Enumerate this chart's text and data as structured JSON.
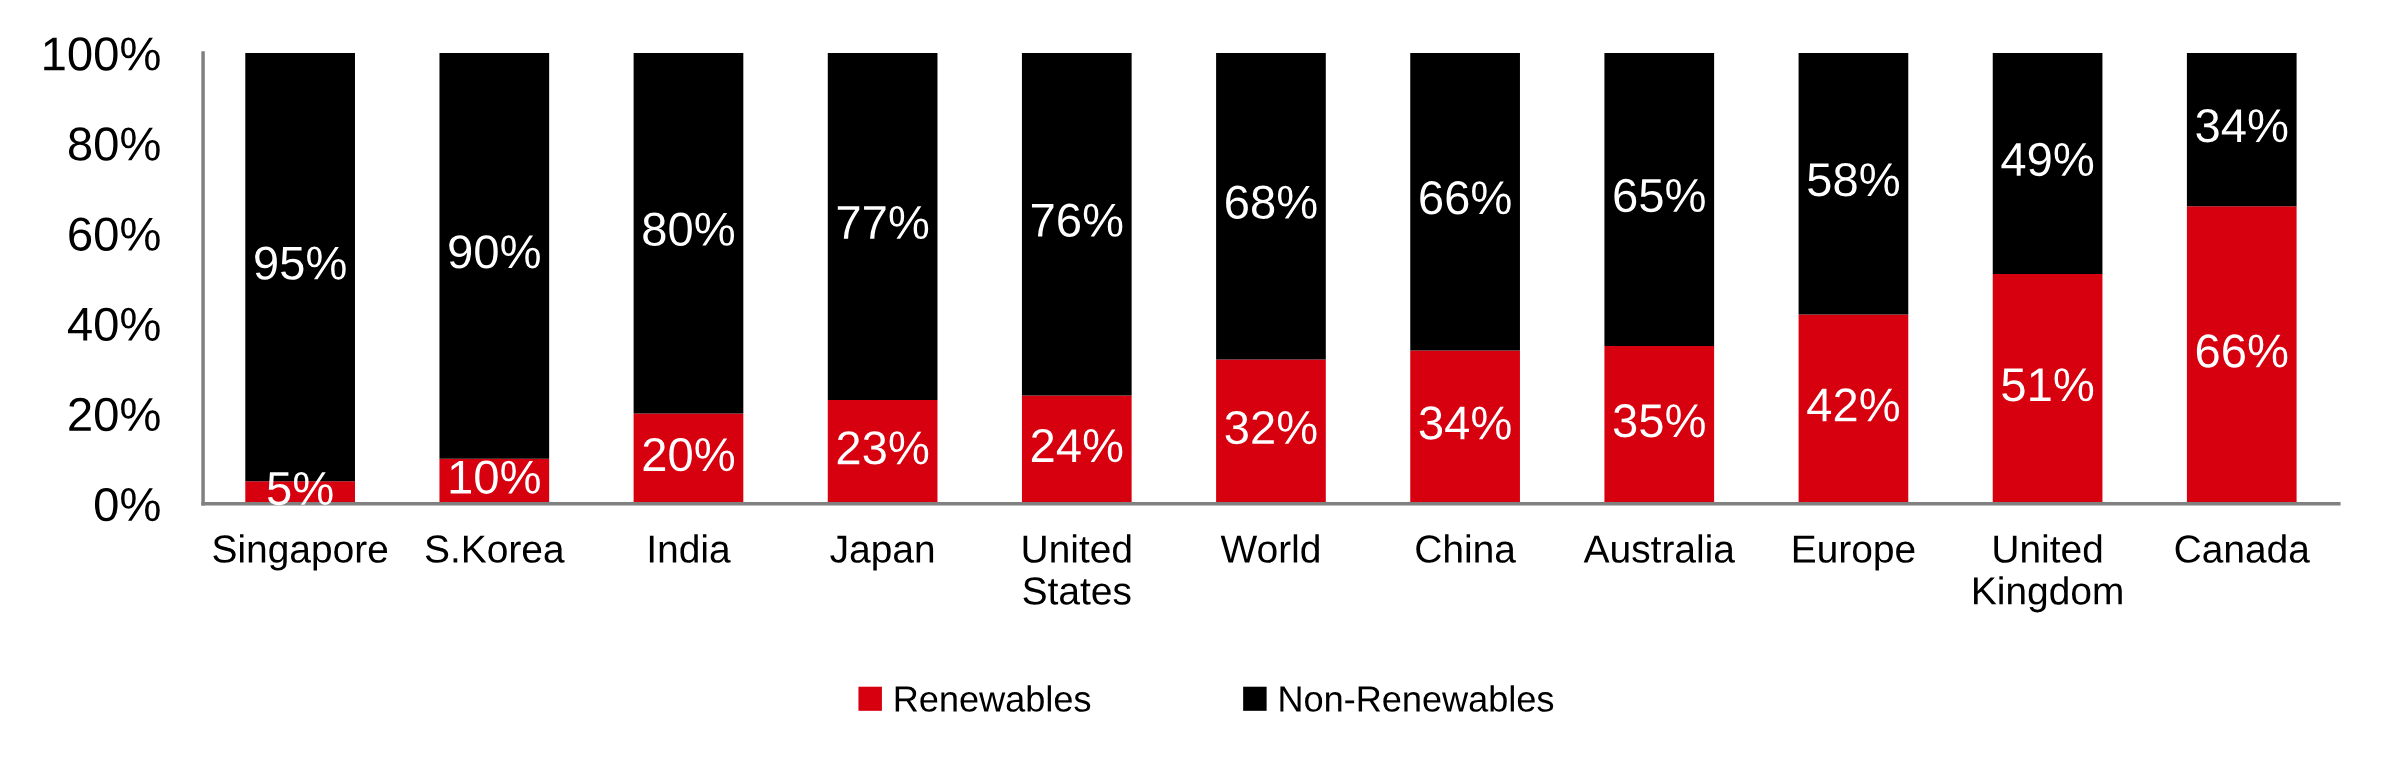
{
  "chart_data": {
    "type": "bar",
    "stacked": true,
    "categories": [
      "Singapore",
      "S.Korea",
      "India",
      "Japan",
      "United States",
      "World",
      "China",
      "Australia",
      "Europe",
      "United Kingdom",
      "Canada"
    ],
    "series": [
      {
        "name": "Renewables",
        "color": "#d7000f",
        "values": [
          5,
          10,
          20,
          23,
          24,
          32,
          34,
          35,
          42,
          51,
          66
        ],
        "value_labels": [
          "5%",
          "10%",
          "20%",
          "23%",
          "24%",
          "32%",
          "34%",
          "35%",
          "42%",
          "51%",
          "66%"
        ]
      },
      {
        "name": "Non-Renewables",
        "color": "#000000",
        "values": [
          95,
          90,
          80,
          77,
          76,
          68,
          66,
          65,
          58,
          49,
          34
        ],
        "value_labels": [
          "95%",
          "90%",
          "80%",
          "77%",
          "76%",
          "68%",
          "66%",
          "65%",
          "58%",
          "49%",
          "34%"
        ]
      }
    ],
    "ylim": [
      0,
      100
    ],
    "yticks": [
      {
        "value": 0,
        "label": "0%"
      },
      {
        "value": 20,
        "label": "20%"
      },
      {
        "value": 40,
        "label": "40%"
      },
      {
        "value": 60,
        "label": "60%"
      },
      {
        "value": 80,
        "label": "80%"
      },
      {
        "value": 100,
        "label": "100%"
      }
    ],
    "grid": false,
    "legend": "bottom"
  }
}
